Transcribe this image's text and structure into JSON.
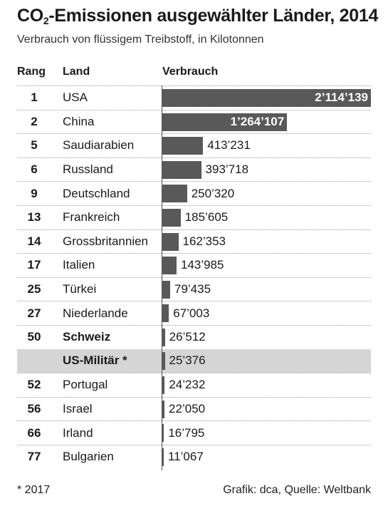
{
  "title": {
    "pre": "CO",
    "sub": "2",
    "post": "-Emissionen ausgewählter Länder, 2014"
  },
  "subtitle": "Verbrauch von flüssigem Treibstoff, in Kilotonnen",
  "headers": {
    "rank": "Rang",
    "land": "Land",
    "value": "Verbrauch"
  },
  "footer": {
    "note": "* 2017",
    "source": "Grafik: dca, Quelle: Weltbank"
  },
  "colors": {
    "bar": "#595959",
    "highlight": "#d5d5d5"
  },
  "chart_data": {
    "type": "bar",
    "title": "CO2-Emissionen ausgewählter Länder, 2014",
    "subtitle": "Verbrauch von flüssigem Treibstoff, in Kilotonnen",
    "xlim": [
      0,
      2114139
    ],
    "rows": [
      {
        "rank": "1",
        "land": "USA",
        "value": 2114139,
        "label": "2’114’139"
      },
      {
        "rank": "2",
        "land": "China",
        "value": 1264107,
        "label": "1’264’107"
      },
      {
        "rank": "5",
        "land": "Saudiarabien",
        "value": 413231,
        "label": "413’231"
      },
      {
        "rank": "6",
        "land": "Russland",
        "value": 393718,
        "label": "393’718"
      },
      {
        "rank": "9",
        "land": "Deutschland",
        "value": 250320,
        "label": "250’320"
      },
      {
        "rank": "13",
        "land": "Frankreich",
        "value": 185605,
        "label": "185’605"
      },
      {
        "rank": "14",
        "land": "Grossbritannien",
        "value": 162353,
        "label": "162’353"
      },
      {
        "rank": "17",
        "land": "Italien",
        "value": 143985,
        "label": "143’985"
      },
      {
        "rank": "25",
        "land": "Türkei",
        "value": 79435,
        "label": "79’435"
      },
      {
        "rank": "27",
        "land": "Niederlande",
        "value": 67003,
        "label": "67’003"
      },
      {
        "rank": "50",
        "land": "Schweiz",
        "value": 26512,
        "label": "26’512",
        "bold": true
      },
      {
        "rank": "",
        "land": "US-Militär *",
        "value": 25376,
        "label": "25’376",
        "bold": true,
        "highlight": true
      },
      {
        "rank": "52",
        "land": "Portugal",
        "value": 24232,
        "label": "24’232"
      },
      {
        "rank": "56",
        "land": "Israel",
        "value": 22050,
        "label": "22’050"
      },
      {
        "rank": "66",
        "land": "Irland",
        "value": 16795,
        "label": "16’795"
      },
      {
        "rank": "77",
        "land": "Bulgarien",
        "value": 11067,
        "label": "11’067"
      }
    ]
  }
}
